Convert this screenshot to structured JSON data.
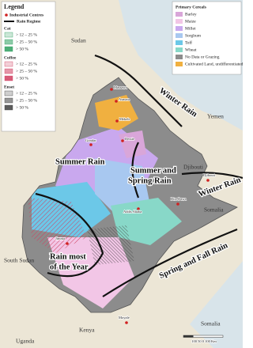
{
  "legend": {
    "title": "Legend",
    "industrial_centres": "Industrial Centres",
    "rain_regime": "Rain Regime",
    "groups": [
      {
        "title": "Cat",
        "color": "#30a060",
        "classes": [
          "> 12 – 25 %",
          "> 25 – 50 %",
          "> 50 %"
        ]
      },
      {
        "title": "Coffee",
        "color": "#d04060",
        "classes": [
          "> 12 – 25 %",
          "> 25 – 50 %",
          "> 50 %"
        ]
      },
      {
        "title": "Enset",
        "color": "#404040",
        "classes": [
          "> 12 – 25 %",
          "> 25 – 50 %",
          "> 50 %"
        ]
      }
    ]
  },
  "cereals": {
    "title": "Primary Cereals",
    "items": [
      {
        "label": "Barley",
        "color": "#d9a6d9"
      },
      {
        "label": "Maize",
        "color": "#f2c6e6"
      },
      {
        "label": "Millet",
        "color": "#c9a8ee"
      },
      {
        "label": "Sorghum",
        "color": "#a8c8f0"
      },
      {
        "label": "Teff",
        "color": "#6cc8e8"
      },
      {
        "label": "Wheat",
        "color": "#88d8c8"
      },
      {
        "label": "No Data or Grazing",
        "color": "#8c8c8c"
      },
      {
        "label": "Cultivated Land, undifferentiated",
        "color": "#f0b040"
      }
    ]
  },
  "map": {
    "countries": [
      "Sudan",
      "Yemen",
      "Djibouti",
      "Somalia",
      "South Sudan",
      "Kenya",
      "Uganda",
      "Somalia"
    ],
    "rain_regimes": [
      "Winter Rain",
      "Winter Rain",
      "Summer Rain",
      "Summer and",
      "Spring Rain",
      "Rain most",
      "of the Year",
      "Spring and Fall Rain"
    ],
    "cities": [
      "Massawa",
      "Asmara",
      "Mekele",
      "Dessie",
      "Gondar",
      "Addis Ababa",
      "Dire Dawa",
      "Djibouti",
      "Jimma",
      "Moyale"
    ],
    "scale": "100  50  0      100 Km"
  }
}
